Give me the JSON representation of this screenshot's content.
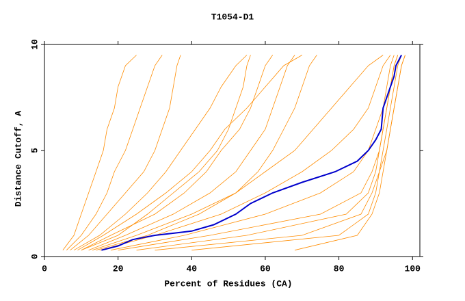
{
  "chart_data": {
    "type": "line",
    "title": "T1054-D1",
    "xlabel": "Percent of Residues (CA)",
    "ylabel": "Distance Cutoff, A",
    "xlim": [
      0,
      102
    ],
    "ylim": [
      0,
      10
    ],
    "xticks": [
      0,
      20,
      40,
      60,
      80,
      100
    ],
    "yticks": [
      0,
      5,
      10
    ],
    "series": [
      {
        "color": "#ff8c00",
        "x": [
          5,
          8,
          10,
          12,
          14,
          16,
          17,
          19,
          20,
          22,
          25
        ],
        "y": [
          0.3,
          1,
          2,
          3,
          4,
          5,
          6,
          7,
          8,
          9,
          9.5
        ]
      },
      {
        "color": "#ff8c00",
        "x": [
          6,
          10,
          14,
          17,
          19,
          22,
          24,
          26,
          28,
          30,
          32
        ],
        "y": [
          0.3,
          1,
          2,
          3,
          4,
          5,
          6,
          7,
          8,
          9,
          9.5
        ]
      },
      {
        "color": "#ff8c00",
        "x": [
          7,
          12,
          17,
          22,
          27,
          30,
          32,
          34,
          35,
          36,
          37
        ],
        "y": [
          0.3,
          1,
          2,
          3,
          4,
          5,
          6,
          7,
          8,
          9,
          9.5
        ]
      },
      {
        "color": "#ff8c00",
        "x": [
          8,
          15,
          22,
          28,
          33,
          37,
          41,
          45,
          48,
          52,
          55
        ],
        "y": [
          0.3,
          1,
          2,
          3,
          4,
          5,
          6,
          7,
          8,
          9,
          9.5
        ]
      },
      {
        "color": "#ff8c00",
        "x": [
          10,
          18,
          30,
          38,
          44,
          48,
          53,
          56,
          58,
          60,
          62
        ],
        "y": [
          0.3,
          1,
          2,
          3,
          4,
          5,
          6,
          7,
          8,
          9,
          9.5
        ]
      },
      {
        "color": "#ff8c00",
        "x": [
          12,
          22,
          35,
          45,
          52,
          56,
          60,
          62,
          64,
          66,
          68
        ],
        "y": [
          0.3,
          1,
          2,
          3,
          4,
          5,
          6,
          7,
          8,
          9,
          9.5
        ]
      },
      {
        "color": "#ff8c00",
        "x": [
          13,
          25,
          40,
          52,
          60,
          68,
          73,
          78,
          83,
          88,
          92
        ],
        "y": [
          0.3,
          1,
          2,
          3,
          4,
          5,
          6,
          7,
          8,
          9,
          9.5
        ]
      },
      {
        "color": "#ff8c00",
        "x": [
          15,
          30,
          48,
          60,
          70,
          78,
          84,
          88,
          90,
          92,
          94
        ],
        "y": [
          0.3,
          1,
          2,
          3,
          4,
          5,
          6,
          7,
          8,
          9,
          9.5
        ]
      },
      {
        "color": "#ff8c00",
        "x": [
          18,
          38,
          60,
          75,
          84,
          88,
          90,
          92,
          93,
          94,
          95
        ],
        "y": [
          0.3,
          1,
          2,
          3,
          4,
          5,
          6,
          7,
          8,
          9,
          9.5
        ]
      },
      {
        "color": "#ff8c00",
        "x": [
          20,
          45,
          75,
          86,
          89,
          91,
          92,
          93,
          94,
          95,
          96
        ],
        "y": [
          0.3,
          1,
          2,
          3,
          4,
          5,
          6,
          7,
          8,
          9,
          9.5
        ]
      },
      {
        "color": "#ff8c00",
        "x": [
          25,
          55,
          82,
          88,
          90,
          91,
          92,
          93,
          94,
          95,
          96
        ],
        "y": [
          0.3,
          1,
          2,
          3,
          4,
          5,
          6,
          7,
          8,
          9,
          9.5
        ]
      },
      {
        "color": "#ff8c00",
        "x": [
          30,
          70,
          86,
          89,
          91,
          92,
          93,
          94,
          95,
          96,
          97
        ],
        "y": [
          0.3,
          1,
          2,
          3,
          4,
          5,
          6,
          7,
          8,
          9,
          9.5
        ]
      },
      {
        "color": "#ff8c00",
        "x": [
          40,
          80,
          88,
          90,
          91,
          93,
          94,
          95,
          96,
          97,
          98
        ],
        "y": [
          0.3,
          1,
          2,
          3,
          4,
          5,
          6,
          7,
          8,
          9,
          9.5
        ]
      },
      {
        "color": "#ff8c00",
        "x": [
          68,
          85,
          89,
          91,
          92,
          93,
          94,
          95,
          96,
          97,
          98
        ],
        "y": [
          0.3,
          1,
          2,
          3,
          4,
          5,
          6,
          7,
          8,
          9,
          9.5
        ]
      },
      {
        "color": "#ff8c00",
        "x": [
          10,
          20,
          28,
          35,
          42,
          47,
          50,
          52,
          54,
          55,
          56
        ],
        "y": [
          0.3,
          1,
          2,
          3,
          4,
          5,
          6,
          7,
          8,
          9,
          9.5
        ]
      },
      {
        "color": "#ff8c00",
        "x": [
          9,
          16,
          25,
          33,
          40,
          45,
          49,
          55,
          60,
          65,
          70
        ],
        "y": [
          0.3,
          1,
          2,
          3,
          4,
          5,
          6,
          7,
          8,
          9,
          9.5
        ]
      },
      {
        "color": "#ff8c00",
        "x": [
          14,
          28,
          42,
          52,
          58,
          62,
          65,
          68,
          70,
          72,
          74
        ],
        "y": [
          0.3,
          1,
          2,
          3,
          4,
          5,
          6,
          7,
          8,
          9,
          9.5
        ]
      },
      {
        "color": "#0000cc",
        "x": [
          15.5,
          20,
          24,
          30,
          40,
          46,
          52,
          56,
          62,
          70,
          79,
          85,
          88,
          90,
          91.5,
          92,
          94,
          95,
          95.5,
          97
        ],
        "y": [
          0.3,
          0.5,
          0.8,
          1.0,
          1.2,
          1.5,
          2,
          2.5,
          3,
          3.5,
          4,
          4.5,
          5,
          5.5,
          6,
          7,
          8,
          8.5,
          9,
          9.5
        ]
      }
    ]
  }
}
